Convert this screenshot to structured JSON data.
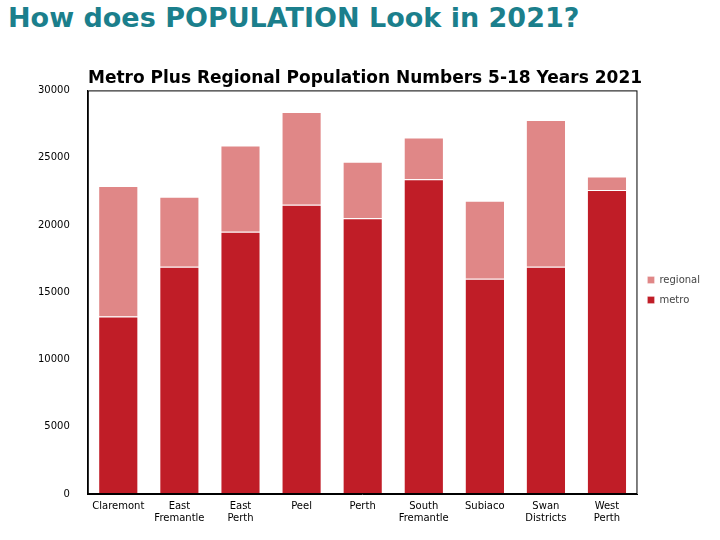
{
  "heading": "How does POPULATION Look in 2021?",
  "chart_data": {
    "type": "bar",
    "title": "Metro Plus Regional Population Numbers 5-18 Years 2021",
    "categories": [
      "Claremont",
      "East Fremantle",
      "East Perth",
      "Peel",
      "Perth",
      "South Fremantle",
      "Subiaco",
      "Swan Districts",
      "West Perth"
    ],
    "series": [
      {
        "name": "metro",
        "color": "#c01d27",
        "values": [
          13200,
          16900,
          19500,
          21500,
          20500,
          23400,
          16000,
          16900,
          22600
        ]
      },
      {
        "name": "regional",
        "color": "#e08787",
        "values": [
          9700,
          5200,
          6400,
          6900,
          4200,
          3100,
          5800,
          10900,
          1000
        ]
      }
    ],
    "ylim": [
      0,
      30000
    ],
    "yticks": [
      0,
      5000,
      10000,
      15000,
      20000,
      25000,
      30000
    ],
    "stacked": true,
    "grid": false,
    "legend": "right"
  }
}
